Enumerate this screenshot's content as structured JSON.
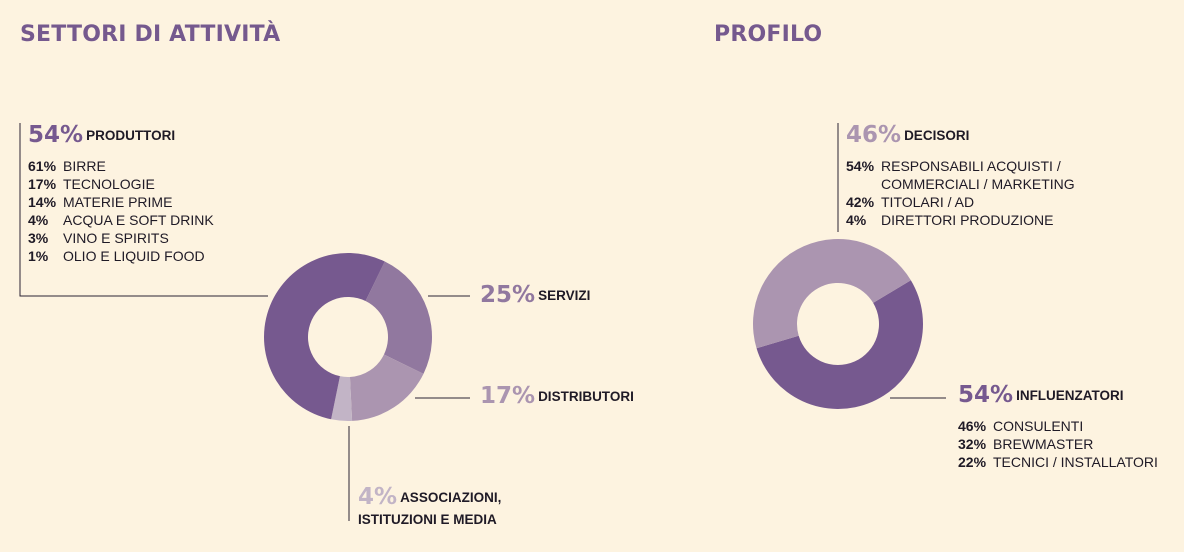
{
  "colors": {
    "bg": "#fdf3e0",
    "title": "#75598e",
    "dark": "#76598f",
    "mid": "#91789f",
    "light": "#ab95b0",
    "pale": "#c2b4c6",
    "line": "#2a2333"
  },
  "chart_data": [
    {
      "type": "pie",
      "title": "SETTORI DI ATTIVITÀ",
      "donut": true,
      "slices": [
        {
          "value": 54,
          "pct_label": "54%",
          "label": "PRODUTTORI",
          "color": "#76598f",
          "breakdown": [
            {
              "pct": "61%",
              "label": "BIRRE"
            },
            {
              "pct": "17%",
              "label": "TECNOLOGIE"
            },
            {
              "pct": "14%",
              "label": "MATERIE PRIME"
            },
            {
              "pct": "4%",
              "label": "ACQUA E SOFT DRINK"
            },
            {
              "pct": "3%",
              "label": "VINO E SPIRITS"
            },
            {
              "pct": "1%",
              "label": "OLIO E LIQUID FOOD"
            }
          ]
        },
        {
          "value": 25,
          "pct_label": "25%",
          "label": "SERVIZI",
          "color": "#91789f"
        },
        {
          "value": 17,
          "pct_label": "17%",
          "label": "DISTRIBUTORI",
          "color": "#ab95b0"
        },
        {
          "value": 4,
          "pct_label": "4%",
          "label_line1": "ASSOCIAZIONI,",
          "label_line2": "ISTITUZIONI E MEDIA",
          "color": "#c2b4c6"
        }
      ]
    },
    {
      "type": "pie",
      "title": "PROFILO",
      "donut": true,
      "slices": [
        {
          "value": 46,
          "pct_label": "46%",
          "label": "DECISORI",
          "color": "#ab95b0",
          "breakdown": [
            {
              "pct": "54%",
              "label": "RESPONSABILI ACQUISTI /"
            },
            {
              "pct": "",
              "label": "COMMERCIALI / MARKETING"
            },
            {
              "pct": "42%",
              "label": "TITOLARI / AD"
            },
            {
              "pct": "4%",
              "label": "DIRETTORI PRODUZIONE"
            }
          ]
        },
        {
          "value": 54,
          "pct_label": "54%",
          "label": "INFLUENZATORI",
          "color": "#76598f",
          "breakdown": [
            {
              "pct": "46%",
              "label": "CONSULENTI"
            },
            {
              "pct": "32%",
              "label": "BREWMASTER"
            },
            {
              "pct": "22%",
              "label": "TECNICI / INSTALLATORI"
            }
          ]
        }
      ]
    }
  ]
}
